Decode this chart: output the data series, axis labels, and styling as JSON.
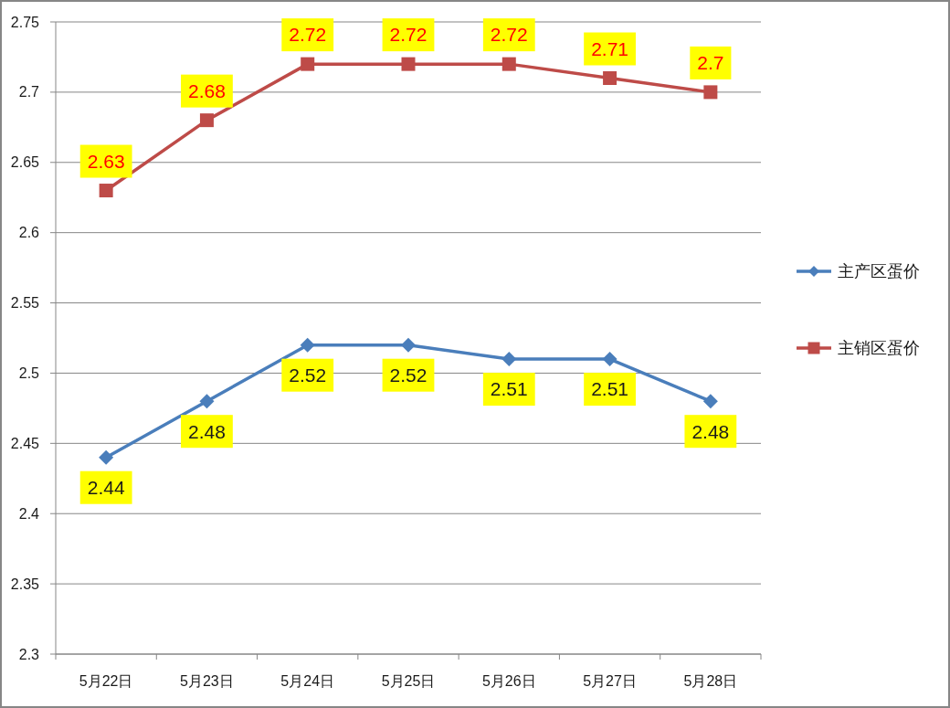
{
  "chart_data": {
    "type": "line",
    "categories": [
      "5月22日",
      "5月23日",
      "5月24日",
      "5月25日",
      "5月26日",
      "5月27日",
      "5月28日"
    ],
    "series": [
      {
        "name": "主产区蛋价",
        "color": "#4a7ebb",
        "marker": "diamond",
        "values": [
          2.44,
          2.48,
          2.52,
          2.52,
          2.51,
          2.51,
          2.48
        ]
      },
      {
        "name": "主销区蛋价",
        "color": "#be4b48",
        "marker": "square",
        "values": [
          2.63,
          2.68,
          2.72,
          2.72,
          2.72,
          2.71,
          2.7
        ]
      }
    ],
    "ylim": [
      2.3,
      2.75
    ],
    "yticks": [
      2.3,
      2.35,
      2.4,
      2.45,
      2.5,
      2.55,
      2.6,
      2.65,
      2.7,
      2.75
    ],
    "grid": "y",
    "legend": "right",
    "data_labels": true,
    "line_style": "solid"
  }
}
